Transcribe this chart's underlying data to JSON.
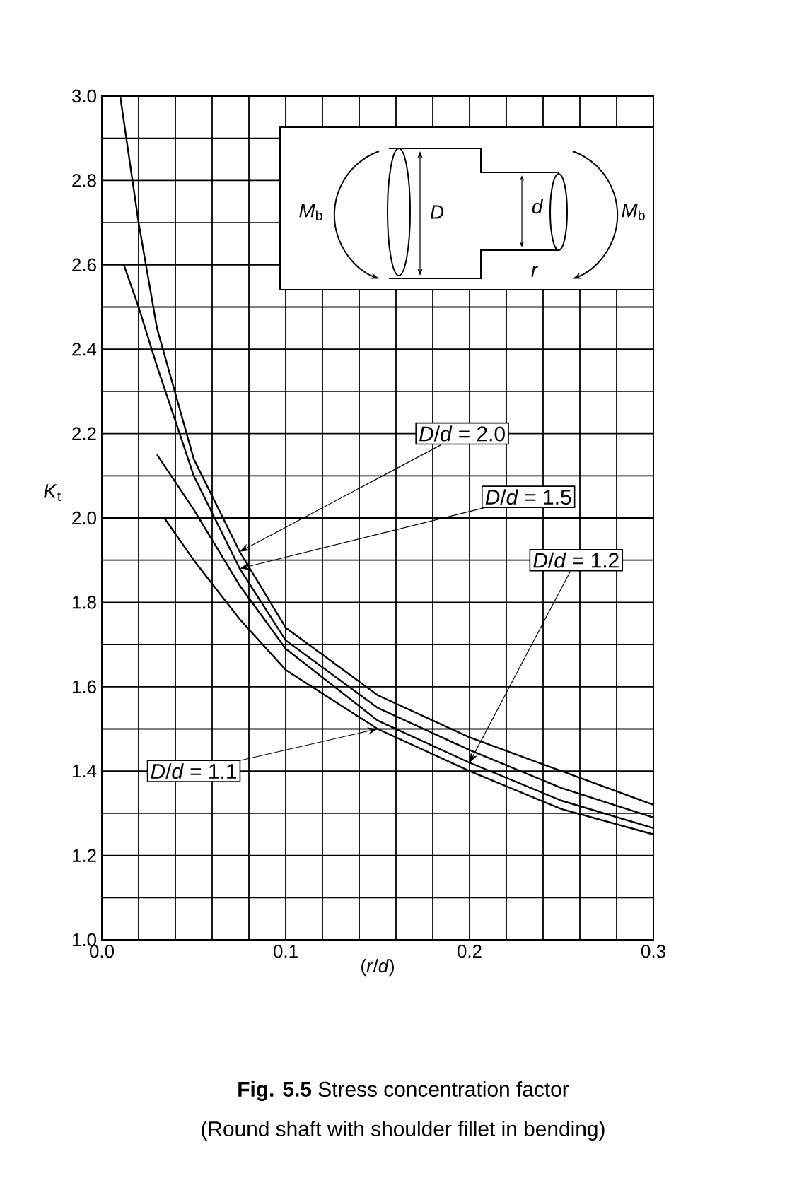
{
  "chart_data": {
    "type": "line",
    "title": "**Fig. 5.5** Stress concentration factor",
    "subtitle": "(Round shaft with shoulder fillet in bending)",
    "xlabel": "(*r*/*d*)",
    "ylabel": "*K*$_{t}$",
    "xlim": [
      0,
      0.3
    ],
    "ylim": [
      1.0,
      3.0
    ],
    "xticks": [
      {
        "value": 0,
        "label": "0.0"
      },
      0.1,
      0.2,
      0.3
    ],
    "yticks": [
      {
        "value": 1.0,
        "label": "1.0"
      },
      1.2,
      1.4,
      1.6,
      1.8,
      {
        "value": 2.0,
        "label": "2.0"
      },
      2.2,
      2.4,
      2.6,
      2.8,
      {
        "value": 3.0,
        "label": "3.0"
      }
    ],
    "grid": true,
    "legend": false,
    "marker": "none",
    "line_style": "solid",
    "series": [
      {
        "name": "*D*/*d* = 2.0",
        "color": "#000000",
        "x": [
          0.01,
          0.02,
          0.03,
          0.05,
          0.075,
          0.1,
          0.15,
          0.2,
          0.25,
          0.3
        ],
        "values": [
          3.0,
          2.7,
          2.45,
          2.14,
          1.92,
          1.74,
          1.58,
          1.48,
          1.4,
          1.32
        ]
      },
      {
        "name": "*D*/*d* = 1.5",
        "color": "#000000",
        "x": [
          0.012,
          0.02,
          0.03,
          0.05,
          0.075,
          0.1,
          0.15,
          0.2,
          0.25,
          0.3
        ],
        "values": [
          2.6,
          2.5,
          2.36,
          2.1,
          1.88,
          1.71,
          1.55,
          1.45,
          1.36,
          1.29
        ]
      },
      {
        "name": "*D*/*d* = 1.2",
        "color": "#000000",
        "x": [
          0.03,
          0.05,
          0.075,
          0.1,
          0.15,
          0.2,
          0.25,
          0.3
        ],
        "values": [
          2.15,
          2.02,
          1.84,
          1.69,
          1.52,
          1.42,
          1.33,
          1.265
        ]
      },
      {
        "name": "*D*/*d* = 1.1",
        "color": "#000000",
        "x": [
          0.034,
          0.05,
          0.075,
          0.1,
          0.15,
          0.2,
          0.25,
          0.3
        ],
        "values": [
          2.0,
          1.9,
          1.76,
          1.64,
          1.5,
          1.4,
          1.31,
          1.25
        ]
      }
    ],
    "annotations": [
      "*M*$_{b}$",
      "*D*",
      "*d*",
      "*r*",
      "*M*$_{b}$"
    ]
  }
}
